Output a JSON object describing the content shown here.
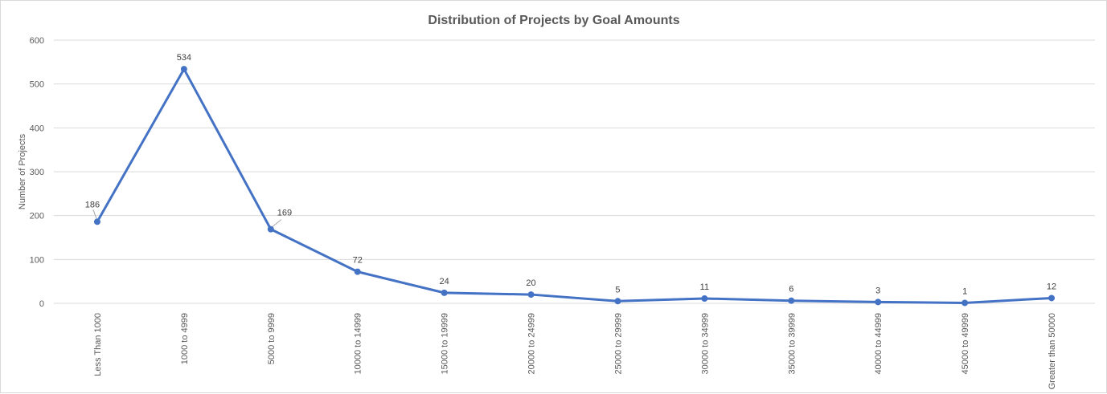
{
  "chart_data": {
    "type": "line",
    "title": "Distribution of Projects by Goal Amounts",
    "xlabel": "",
    "ylabel": "Number of Projects",
    "ylim": [
      0,
      600
    ],
    "yticks": [
      0,
      100,
      200,
      300,
      400,
      500,
      600
    ],
    "grid": true,
    "legend": "none",
    "line_color": "#4472C4",
    "categories": [
      "Less Than 1000",
      "1000 to 4999",
      "5000 to 9999",
      "10000 to 14999",
      "15000 to 19999",
      "20000 to 24999",
      "25000 to 29999",
      "30000 to 34999",
      "35000 to 39999",
      "40000 to 44999",
      "45000 to 49999",
      "Greater than 50000"
    ],
    "series": [
      {
        "values": [
          186,
          534,
          169,
          72,
          24,
          20,
          5,
          11,
          6,
          3,
          1,
          12
        ]
      }
    ]
  }
}
